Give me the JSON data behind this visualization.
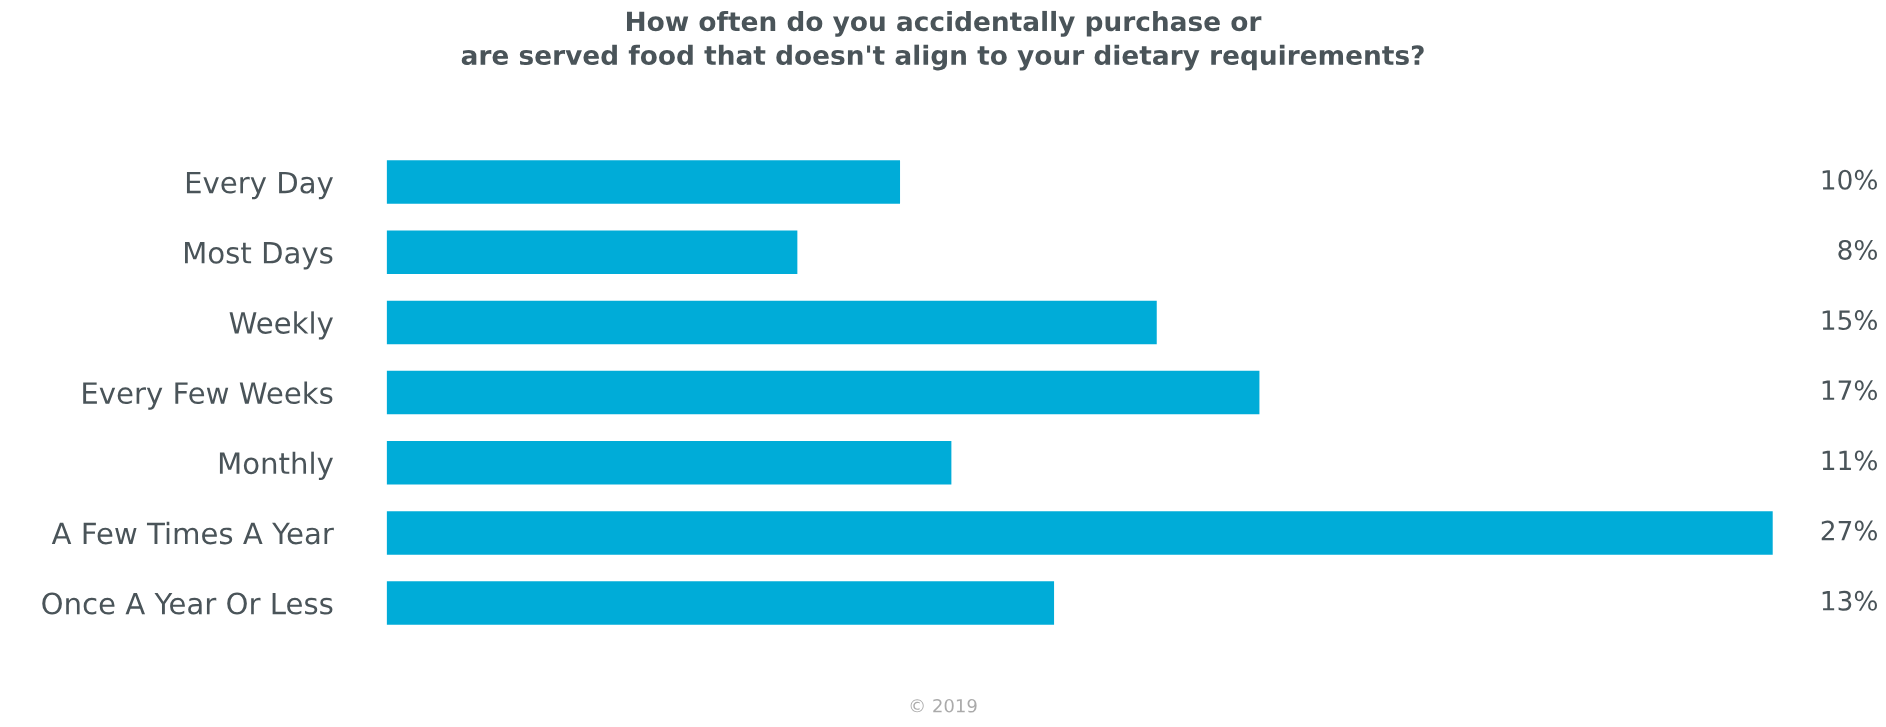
{
  "chart_data": {
    "type": "bar",
    "orientation": "horizontal",
    "title": "How often do you accidentally purchase or\nare served food that doesn't align to your dietary requirements?",
    "categories": [
      "Every Day",
      "Most Days",
      "Weekly",
      "Every Few Weeks",
      "Monthly",
      "A Few Times A Year",
      "Once A Year Or Less"
    ],
    "values": [
      10,
      8,
      15,
      17,
      11,
      27,
      13
    ],
    "value_labels": [
      "10%",
      "8%",
      "15%",
      "17%",
      "11%",
      "27%",
      "13%"
    ],
    "color": "#00acd8",
    "annotations": [
      "© 2019"
    ],
    "grid": false,
    "legend": false
  }
}
